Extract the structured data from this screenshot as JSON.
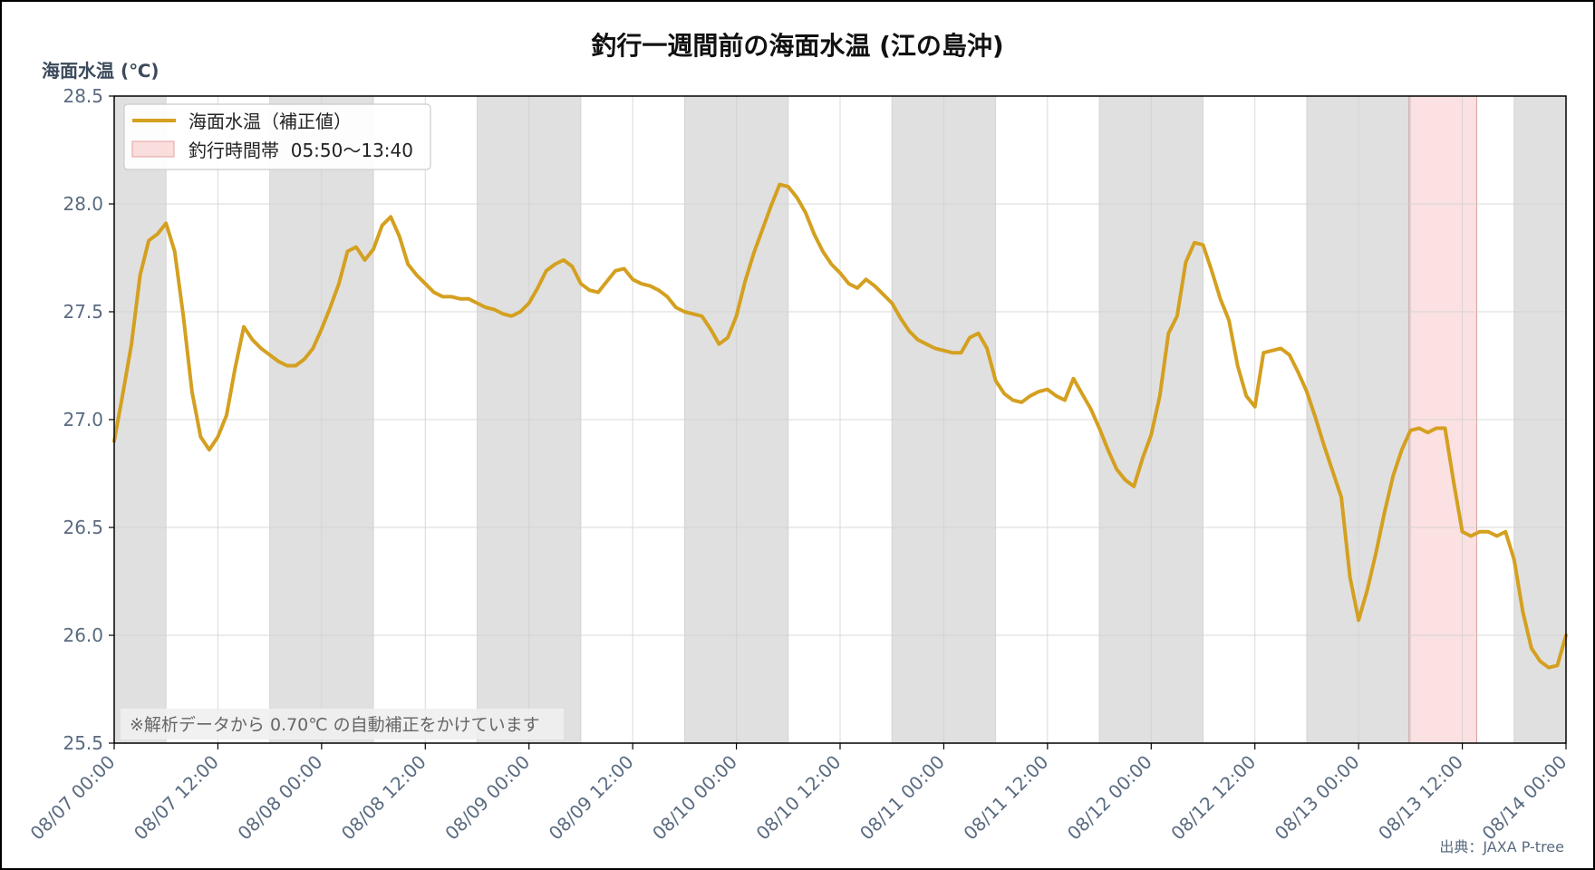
{
  "chart_data": {
    "type": "line",
    "title": "釣行一週間前の海面水温 (江の島沖)",
    "ylabel": "海面水温 (℃)",
    "xlabel": "",
    "ylim": [
      25.5,
      28.5
    ],
    "xlim": [
      "08/07 00:00",
      "08/14 00:00"
    ],
    "yticks": [
      25.5,
      26.0,
      26.5,
      27.0,
      27.5,
      28.0,
      28.5
    ],
    "ytick_labels": [
      "25.5",
      "26.0",
      "26.5",
      "27.0",
      "27.5",
      "28.0",
      "28.5"
    ],
    "xticks": [
      "08/07 00:00",
      "08/07 12:00",
      "08/08 00:00",
      "08/08 12:00",
      "08/09 00:00",
      "08/09 12:00",
      "08/10 00:00",
      "08/10 12:00",
      "08/11 00:00",
      "08/11 12:00",
      "08/12 00:00",
      "08/12 12:00",
      "08/13 00:00",
      "08/13 12:00",
      "08/14 00:00"
    ],
    "grid": true,
    "legend": {
      "placement": "top-left"
    },
    "series": [
      {
        "name": "海面水温（補正値）",
        "color": "#d4a020",
        "x": [
          "08/07 00:00",
          "08/07 01:00",
          "08/07 02:00",
          "08/07 03:00",
          "08/07 04:00",
          "08/07 05:00",
          "08/07 06:00",
          "08/07 07:00",
          "08/07 08:00",
          "08/07 09:00",
          "08/07 10:00",
          "08/07 11:00",
          "08/07 12:00",
          "08/07 13:00",
          "08/07 14:00",
          "08/07 15:00",
          "08/07 16:00",
          "08/07 17:00",
          "08/07 18:00",
          "08/07 19:00",
          "08/07 20:00",
          "08/07 21:00",
          "08/07 22:00",
          "08/07 23:00",
          "08/08 00:00",
          "08/08 01:00",
          "08/08 02:00",
          "08/08 03:00",
          "08/08 04:00",
          "08/08 05:00",
          "08/08 06:00",
          "08/08 07:00",
          "08/08 08:00",
          "08/08 09:00",
          "08/08 10:00",
          "08/08 11:00",
          "08/08 12:00",
          "08/08 13:00",
          "08/08 14:00",
          "08/08 15:00",
          "08/08 16:00",
          "08/08 17:00",
          "08/08 18:00",
          "08/08 19:00",
          "08/08 20:00",
          "08/08 21:00",
          "08/08 22:00",
          "08/08 23:00",
          "08/09 00:00",
          "08/09 01:00",
          "08/09 02:00",
          "08/09 03:00",
          "08/09 04:00",
          "08/09 05:00",
          "08/09 06:00",
          "08/09 07:00",
          "08/09 08:00",
          "08/09 09:00",
          "08/09 10:00",
          "08/09 11:00",
          "08/09 12:00",
          "08/09 13:00",
          "08/09 14:00",
          "08/09 15:00",
          "08/09 16:00",
          "08/09 17:00",
          "08/09 18:00",
          "08/09 19:00",
          "08/09 20:00",
          "08/09 21:00",
          "08/09 22:00",
          "08/09 23:00",
          "08/10 00:00",
          "08/10 01:00",
          "08/10 02:00",
          "08/10 03:00",
          "08/10 04:00",
          "08/10 05:00",
          "08/10 06:00",
          "08/10 07:00",
          "08/10 08:00",
          "08/10 09:00",
          "08/10 10:00",
          "08/10 11:00",
          "08/10 12:00",
          "08/10 13:00",
          "08/10 14:00",
          "08/10 15:00",
          "08/10 16:00",
          "08/10 17:00",
          "08/10 18:00",
          "08/10 19:00",
          "08/10 20:00",
          "08/10 21:00",
          "08/10 22:00",
          "08/10 23:00",
          "08/11 00:00",
          "08/11 01:00",
          "08/11 02:00",
          "08/11 03:00",
          "08/11 04:00",
          "08/11 05:00",
          "08/11 06:00",
          "08/11 07:00",
          "08/11 08:00",
          "08/11 09:00",
          "08/11 10:00",
          "08/11 11:00",
          "08/11 12:00",
          "08/11 13:00",
          "08/11 14:00",
          "08/11 15:00",
          "08/11 16:00",
          "08/11 17:00",
          "08/11 18:00",
          "08/11 19:00",
          "08/11 20:00",
          "08/11 21:00",
          "08/11 22:00",
          "08/11 23:00",
          "08/12 00:00",
          "08/12 01:00",
          "08/12 02:00",
          "08/12 03:00",
          "08/12 04:00",
          "08/12 05:00",
          "08/12 06:00",
          "08/12 07:00",
          "08/12 08:00",
          "08/12 09:00",
          "08/12 10:00",
          "08/12 11:00",
          "08/12 12:00",
          "08/12 13:00",
          "08/12 14:00",
          "08/12 15:00",
          "08/12 16:00",
          "08/12 17:00",
          "08/12 18:00",
          "08/12 19:00",
          "08/12 20:00",
          "08/12 21:00",
          "08/12 22:00",
          "08/12 23:00",
          "08/13 00:00",
          "08/13 01:00",
          "08/13 02:00",
          "08/13 03:00",
          "08/13 04:00",
          "08/13 05:00",
          "08/13 06:00",
          "08/13 07:00",
          "08/13 08:00",
          "08/13 09:00",
          "08/13 10:00",
          "08/13 11:00",
          "08/13 12:00",
          "08/13 13:00",
          "08/13 14:00",
          "08/13 15:00",
          "08/13 16:00",
          "08/13 17:00",
          "08/13 18:00",
          "08/13 19:00",
          "08/13 20:00",
          "08/13 21:00",
          "08/13 22:00",
          "08/13 23:00",
          "08/14 00:00"
        ],
        "y": [
          26.9,
          27.12,
          27.35,
          27.67,
          27.83,
          27.86,
          27.91,
          27.78,
          27.48,
          27.13,
          26.92,
          26.86,
          26.92,
          27.02,
          27.24,
          27.43,
          27.37,
          27.33,
          27.3,
          27.27,
          27.25,
          27.25,
          27.28,
          27.33,
          27.42,
          27.52,
          27.63,
          27.78,
          27.8,
          27.74,
          27.79,
          27.9,
          27.94,
          27.85,
          27.72,
          27.67,
          27.63,
          27.59,
          27.57,
          27.57,
          27.56,
          27.56,
          27.54,
          27.52,
          27.51,
          27.49,
          27.48,
          27.5,
          27.54,
          27.61,
          27.69,
          27.72,
          27.74,
          27.71,
          27.63,
          27.6,
          27.59,
          27.64,
          27.69,
          27.7,
          27.65,
          27.63,
          27.62,
          27.6,
          27.57,
          27.52,
          27.5,
          27.49,
          27.48,
          27.42,
          27.35,
          27.38,
          27.48,
          27.64,
          27.77,
          27.88,
          27.99,
          28.09,
          28.08,
          28.03,
          27.96,
          27.86,
          27.78,
          27.72,
          27.68,
          27.63,
          27.61,
          27.65,
          27.62,
          27.58,
          27.54,
          27.47,
          27.41,
          27.37,
          27.35,
          27.33,
          27.32,
          27.31,
          27.31,
          27.38,
          27.4,
          27.33,
          27.18,
          27.12,
          27.09,
          27.08,
          27.11,
          27.13,
          27.14,
          27.11,
          27.09,
          27.19,
          27.12,
          27.05,
          26.96,
          26.86,
          26.77,
          26.72,
          26.69,
          26.82,
          26.93,
          27.11,
          27.4,
          27.48,
          27.73,
          27.82,
          27.81,
          27.69,
          27.56,
          27.46,
          27.25,
          27.11,
          27.06,
          27.31,
          27.32,
          27.33,
          27.3,
          27.22,
          27.13,
          27.01,
          26.88,
          26.76,
          26.64,
          26.27,
          26.07,
          26.21,
          26.38,
          26.57,
          26.74,
          26.86,
          26.95,
          26.96,
          26.94,
          26.96,
          26.96,
          26.71,
          26.48,
          26.46,
          26.48,
          26.48,
          26.46,
          26.48,
          26.35,
          26.11,
          25.94,
          25.88,
          25.85,
          25.86,
          26.0
        ]
      }
    ],
    "shaded_night": [
      [
        "08/07 00:00",
        "08/07 06:00"
      ],
      [
        "08/07 18:00",
        "08/08 06:00"
      ],
      [
        "08/08 18:00",
        "08/09 06:00"
      ],
      [
        "08/09 18:00",
        "08/10 06:00"
      ],
      [
        "08/10 18:00",
        "08/11 06:00"
      ],
      [
        "08/11 18:00",
        "08/12 06:00"
      ],
      [
        "08/12 18:00",
        "08/13 06:00"
      ],
      [
        "08/13 18:00",
        "08/14 00:00"
      ]
    ],
    "fishing_window": {
      "label": "釣行時間帯  05:50〜13:40",
      "start": "08/13 05:50",
      "end": "08/13 13:40",
      "color": "#f8c8c8"
    },
    "note": "※解析データから 0.70℃ の自動補正をかけています",
    "source": "出典：JAXA P-tree"
  }
}
